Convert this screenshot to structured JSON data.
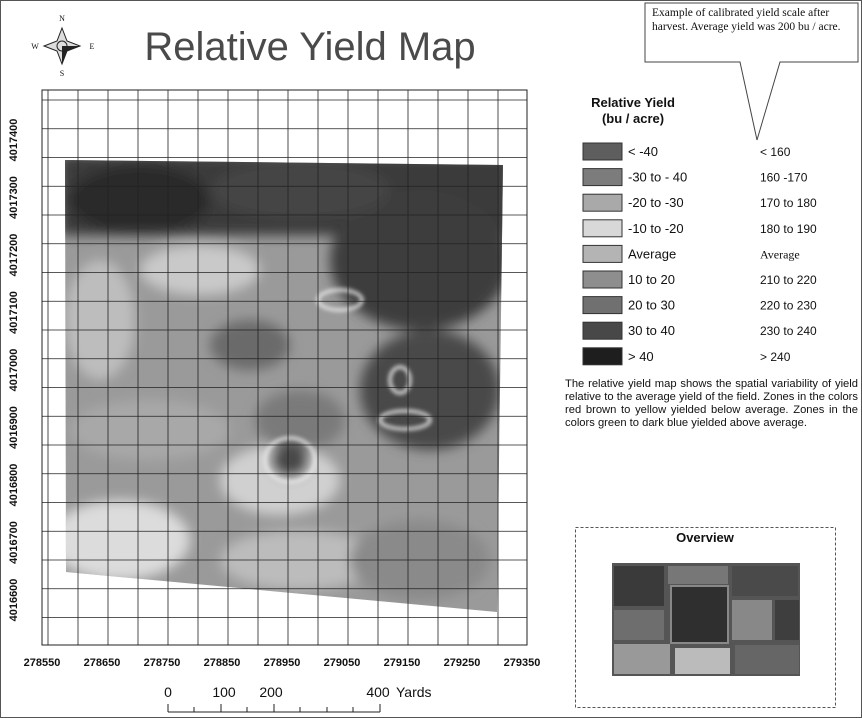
{
  "header": {
    "title": "Relative Yield Map",
    "compass": {
      "n": "N",
      "s": "S",
      "e": "E",
      "w": "W"
    }
  },
  "callout": "Example of calibrated yield scale after harvest. Average yield was 200 bu / acre.",
  "map": {
    "x_labels": [
      "278550",
      "278650",
      "278750",
      "278850",
      "278950",
      "279050",
      "279150",
      "279250",
      "279350"
    ],
    "y_labels": [
      "4017400",
      "4017300",
      "4017200",
      "4017100",
      "4017000",
      "4016900",
      "4016800",
      "4016700",
      "4016600"
    ]
  },
  "legend": {
    "title": [
      "Relative Yield",
      "(bu / acre)"
    ],
    "items": [
      {
        "label": "< -40",
        "yield": "< 160",
        "color": "#5e5e5e"
      },
      {
        "label": "-30 to - 40",
        "yield": "160 -170",
        "color": "#7c7c7c"
      },
      {
        "label": "-20 to -30",
        "yield": "170 to 180",
        "color": "#a9a9a9"
      },
      {
        "label": "-10 to -20",
        "yield": "180 to 190",
        "color": "#d8d8d8"
      },
      {
        "label": "Average",
        "yield": "Average",
        "color": "#b4b4b4"
      },
      {
        "label": "10 to 20",
        "yield": "210 to 220",
        "color": "#8e8e8e"
      },
      {
        "label": "20 to 30",
        "yield": "220 to 230",
        "color": "#707070"
      },
      {
        "label": "30 to 40",
        "yield": "230 to 240",
        "color": "#484848"
      },
      {
        "label": "> 40",
        "yield": "> 240",
        "color": "#1e1e1e"
      }
    ]
  },
  "description": "The relative yield map shows the spatial variability of yield relative to the average yield of the field. Zones in the colors red brown to yellow yielded below average. Zones in the colors green to dark blue yielded above average.",
  "overview": {
    "title": "Overview"
  },
  "scale_bar": {
    "labels": [
      "0",
      "100",
      "200",
      "400"
    ],
    "unit": "Yards"
  }
}
